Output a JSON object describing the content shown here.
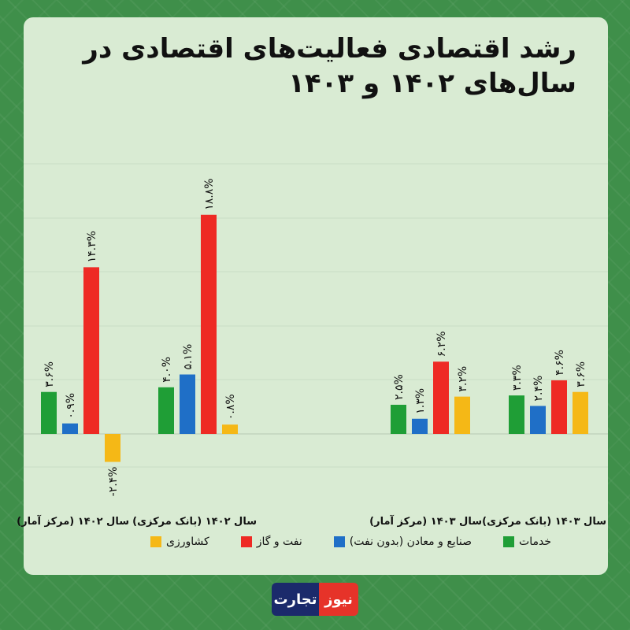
{
  "title": "رشد اقتصادی فعالیت‌های اقتصادی در سال‌های ۱۴۰۲ و ۱۴۰۳",
  "logo_text": [
    "تجارت",
    "نیوز"
  ],
  "colors": {
    "services": "#1f9e36",
    "industry": "#1f6fc7",
    "oil_gas": "#ee2a24",
    "agriculture": "#f5b816"
  },
  "chart_data": {
    "type": "bar",
    "title": "رشد اقتصادی فعالیت‌های اقتصادی در سال‌های ۱۴۰۲ و ۱۴۰۳",
    "categories": [
      "سال ۱۴۰۲ (مرکز آمار)",
      "سال ۱۴۰۲ (بانک مرکزی)",
      "سال ۱۴۰۳ (مرکز آمار)",
      "سال ۱۴۰۳ (بانک مرکزی)"
    ],
    "series": [
      {
        "name": "خدمات",
        "key": "services",
        "values": [
          3.6,
          4.0,
          2.5,
          3.3
        ],
        "labels": [
          "۳.۶%",
          "۴.۰%",
          "۲.۵%",
          "۳.۳%"
        ]
      },
      {
        "name": "صنایع و معادن (بدون نفت)",
        "key": "industry",
        "values": [
          0.9,
          5.1,
          1.3,
          2.4
        ],
        "labels": [
          "۰.۹%",
          "۵.۱%",
          "۱.۳%",
          "۲.۴%"
        ]
      },
      {
        "name": "نفت و گاز",
        "key": "oil_gas",
        "values": [
          14.3,
          18.8,
          6.2,
          4.6
        ],
        "labels": [
          "۱۴.۳%",
          "۱۸.۸%",
          "۶.۲%",
          "۴.۶%"
        ]
      },
      {
        "name": "کشاورزی",
        "key": "agriculture",
        "values": [
          -2.4,
          0.8,
          3.2,
          3.6
        ],
        "labels": [
          "-۲.۴%",
          "۰.۸%",
          "۳.۲%",
          "۳.۶%"
        ]
      }
    ],
    "ylim": [
      -5,
      25
    ],
    "grid": true,
    "legend_position": "bottom"
  }
}
